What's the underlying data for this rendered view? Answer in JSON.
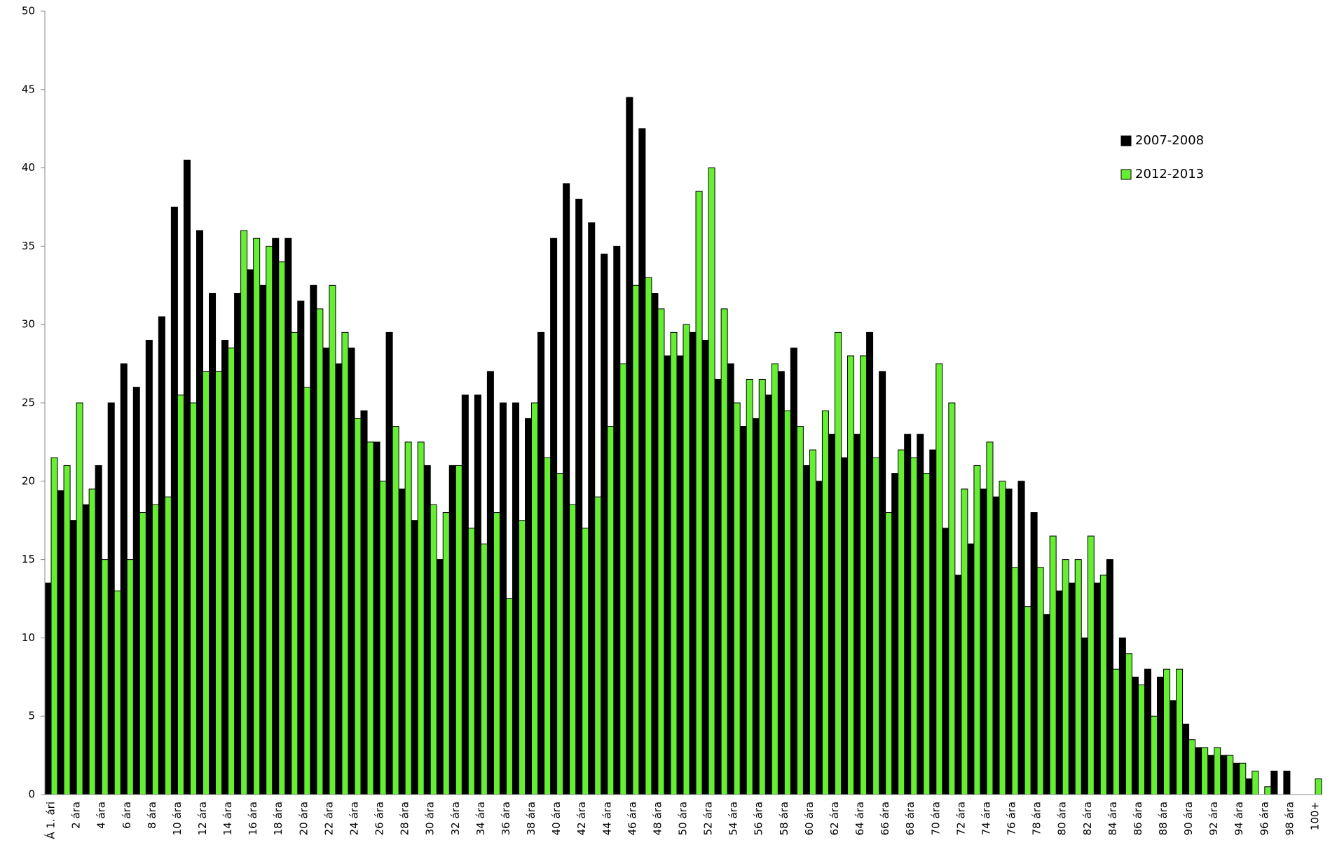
{
  "chart_data": {
    "type": "bar",
    "categories": [
      "Á 1. ári",
      null,
      "2 ára",
      null,
      "4 ára",
      null,
      "6 ára",
      null,
      "8 ára",
      null,
      "10 ára",
      null,
      "12 ára",
      null,
      "14 ára",
      null,
      "16 ára",
      null,
      "18 ára",
      null,
      "20 ára",
      null,
      "22 ára",
      null,
      "24 ára",
      null,
      "26 ára",
      null,
      "28 ára",
      null,
      "30 ára",
      null,
      "32 ára",
      null,
      "34 ára",
      null,
      "36 ára",
      null,
      "38 ára",
      null,
      "40 ára",
      null,
      "42 ára",
      null,
      "44 ára",
      null,
      "46 ára",
      null,
      "48 ára",
      null,
      "50 ára",
      null,
      "52 ára",
      null,
      "54 ára",
      null,
      "56 ára",
      null,
      "58 ára",
      null,
      "60 ára",
      null,
      "62 ára",
      null,
      "64 ára",
      null,
      "66 ára",
      null,
      "68 ára",
      null,
      "70 ára",
      null,
      "72 ára",
      null,
      "74 ára",
      null,
      "76 ára",
      null,
      "78 ára",
      null,
      "80 ára",
      null,
      "82 ára",
      null,
      "84 ára",
      null,
      "86 ára",
      null,
      "88 ára",
      null,
      "90 ára",
      null,
      "92 ára",
      null,
      "94 ára",
      null,
      "96 ára",
      null,
      "98 ára",
      null,
      "100+"
    ],
    "series": [
      {
        "name": "2007-2008",
        "color": "#000000",
        "values": [
          13.5,
          19.4,
          17.5,
          18.5,
          21,
          25,
          27.5,
          26,
          29,
          30.5,
          37.5,
          40.5,
          36,
          32,
          29,
          32,
          33.5,
          32.5,
          35.5,
          35.5,
          31.5,
          32.5,
          28.5,
          27.5,
          28.5,
          24.5,
          22.5,
          29.5,
          19.5,
          17.5,
          21,
          15,
          21,
          25.5,
          25.5,
          27,
          25,
          25,
          24,
          29.5,
          35.5,
          39,
          38,
          36.5,
          34.5,
          35,
          44.5,
          42.5,
          32,
          28,
          28,
          29.5,
          29,
          26.5,
          27.5,
          23.5,
          24,
          25.5,
          27,
          28.5,
          21,
          20,
          23,
          21.5,
          23,
          29.5,
          27,
          20.5,
          23,
          23,
          22,
          17,
          14,
          16,
          19.5,
          19,
          19.5,
          20,
          18,
          11.5,
          13,
          13.5,
          10,
          13.5,
          15,
          10,
          7.5,
          8,
          7.5,
          6,
          4.5,
          3,
          2.5,
          2.5,
          2,
          1,
          0,
          1.5,
          1.5,
          0,
          0
        ]
      },
      {
        "name": "2012-2013",
        "color": "#66ee33",
        "values": [
          21.5,
          21,
          25,
          19.5,
          15,
          13,
          15,
          18,
          18.5,
          19,
          25.5,
          25,
          27,
          27,
          28.5,
          36,
          35.5,
          35,
          34,
          29.5,
          26,
          31,
          32.5,
          29.5,
          24,
          22.5,
          20,
          23.5,
          22.5,
          22.5,
          18.5,
          18,
          21,
          17,
          16,
          18,
          12.5,
          17.5,
          25,
          21.5,
          20.5,
          18.5,
          17,
          19,
          23.5,
          27.5,
          32.5,
          33,
          31,
          29.5,
          30,
          38.5,
          40,
          31,
          25,
          26.5,
          26.5,
          27.5,
          24.5,
          23.5,
          22,
          24.5,
          29.5,
          28,
          28,
          21.5,
          18,
          22,
          21.5,
          20.5,
          27.5,
          25,
          19.5,
          21,
          22.5,
          20,
          14.5,
          12,
          14.5,
          16.5,
          15,
          15,
          16.5,
          14,
          8,
          9,
          7,
          5,
          8,
          8,
          3.5,
          3,
          3,
          2.5,
          2,
          1.5,
          0.5,
          0,
          0,
          0,
          1
        ]
      }
    ],
    "ylim": [
      0,
      50
    ],
    "yticks": [
      0,
      5,
      10,
      15,
      20,
      25,
      30,
      35,
      40,
      45,
      50
    ],
    "legend": "upper right"
  }
}
